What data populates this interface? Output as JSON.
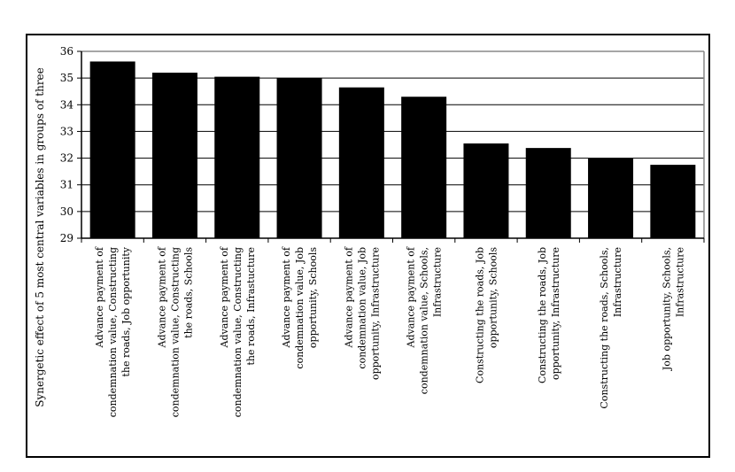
{
  "chart_data": {
    "type": "bar",
    "title": "",
    "xlabel": "",
    "ylabel": "Synergetic effect of 5 most central variables in groups of three",
    "ylim": [
      29,
      36
    ],
    "yticks": [
      29,
      30,
      31,
      32,
      33,
      34,
      35,
      36
    ],
    "grid": true,
    "legend": "none",
    "bar_color": "#000000",
    "categories": [
      [
        "Advance payment of",
        "condemnation value, Constructing",
        "the roads, Job opportunity"
      ],
      [
        "Advance payment of",
        "condemnation value, Constructing",
        "the roads, Schools"
      ],
      [
        "Advance payment of",
        "condemnation value, Constructing",
        "the roads, Infrastucture"
      ],
      [
        "Advance payment of",
        "condemnation value, Job",
        "opportunity, Schools"
      ],
      [
        "Advance payment of",
        "condemnation value, Job",
        "opportunity, Infrastructure"
      ],
      [
        "Advance payment of",
        "condemnation value, Schools,",
        "Infrastructure"
      ],
      [
        "Constructing the roads, Job",
        "opportunity, Schools"
      ],
      [
        "Constructing the roads, Job",
        "opportunity, Infrastructure"
      ],
      [
        "Constructing the roads, Schools,",
        "Infrastructure"
      ],
      [
        "Job opportunity, Schools,",
        "Infrastructure"
      ]
    ],
    "values": [
      35.62,
      35.2,
      35.05,
      35.0,
      34.65,
      34.3,
      32.55,
      32.38,
      32.0,
      31.75
    ]
  }
}
